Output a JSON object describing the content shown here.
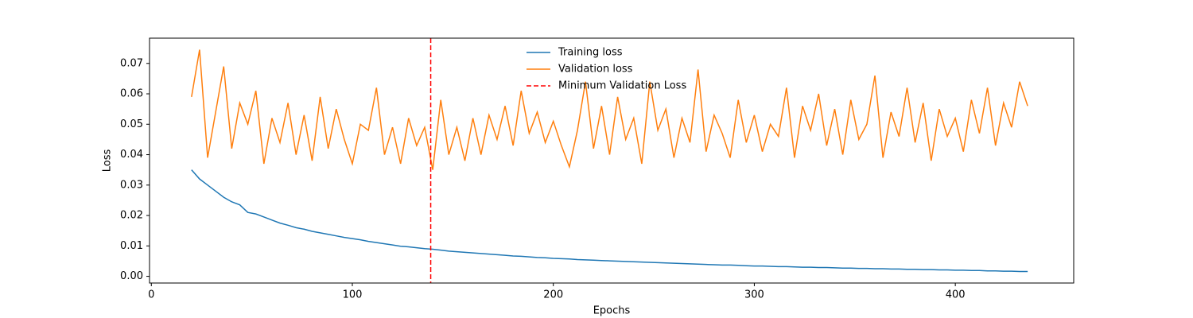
{
  "chart_data": {
    "type": "line",
    "xlabel": "Epochs",
    "ylabel": "Loss",
    "x": [
      20,
      24,
      28,
      32,
      36,
      40,
      44,
      48,
      52,
      56,
      60,
      64,
      68,
      72,
      76,
      80,
      84,
      88,
      92,
      96,
      100,
      104,
      108,
      112,
      116,
      120,
      124,
      128,
      132,
      136,
      140,
      144,
      148,
      152,
      156,
      160,
      164,
      168,
      172,
      176,
      180,
      184,
      188,
      192,
      196,
      200,
      204,
      208,
      212,
      216,
      220,
      224,
      228,
      232,
      236,
      240,
      244,
      248,
      252,
      256,
      260,
      264,
      268,
      272,
      276,
      280,
      284,
      288,
      292,
      296,
      300,
      304,
      308,
      312,
      316,
      320,
      324,
      328,
      332,
      336,
      340,
      344,
      348,
      352,
      356,
      360,
      364,
      368,
      372,
      376,
      380,
      384,
      388,
      392,
      396,
      400,
      404,
      408,
      412,
      416,
      420,
      424,
      428,
      432,
      436
    ],
    "series": [
      {
        "name": "Training loss",
        "color": "#1f77b4",
        "values": [
          0.035,
          0.032,
          0.03,
          0.028,
          0.026,
          0.0245,
          0.0235,
          0.021,
          0.0205,
          0.0195,
          0.0185,
          0.0175,
          0.0168,
          0.016,
          0.0155,
          0.0148,
          0.0143,
          0.0138,
          0.0133,
          0.0128,
          0.0124,
          0.012,
          0.0115,
          0.0111,
          0.0107,
          0.0103,
          0.0099,
          0.0097,
          0.0094,
          0.0091,
          0.0089,
          0.0086,
          0.0083,
          0.0081,
          0.0079,
          0.0077,
          0.0075,
          0.0073,
          0.0071,
          0.0069,
          0.0067,
          0.0066,
          0.0064,
          0.0062,
          0.0061,
          0.0059,
          0.0058,
          0.0057,
          0.0055,
          0.0054,
          0.0053,
          0.0052,
          0.0051,
          0.005,
          0.0049,
          0.0048,
          0.0047,
          0.0046,
          0.0045,
          0.0044,
          0.0043,
          0.0042,
          0.0041,
          0.004,
          0.0039,
          0.0038,
          0.0037,
          0.0037,
          0.0036,
          0.0035,
          0.0034,
          0.0034,
          0.0033,
          0.0032,
          0.0032,
          0.0031,
          0.003,
          0.003,
          0.0029,
          0.0029,
          0.0028,
          0.0027,
          0.0027,
          0.0026,
          0.0026,
          0.0025,
          0.0025,
          0.0024,
          0.0024,
          0.0023,
          0.0023,
          0.0022,
          0.0022,
          0.0021,
          0.0021,
          0.002,
          0.002,
          0.0019,
          0.0019,
          0.0018,
          0.0018,
          0.0017,
          0.0017,
          0.0016,
          0.0016
        ]
      },
      {
        "name": "Validation loss",
        "color": "#ff7f0e",
        "values": [
          0.059,
          0.0745,
          0.039,
          0.054,
          0.069,
          0.042,
          0.057,
          0.05,
          0.061,
          0.037,
          0.052,
          0.044,
          0.057,
          0.04,
          0.053,
          0.038,
          0.059,
          0.042,
          0.055,
          0.045,
          0.037,
          0.05,
          0.048,
          0.062,
          0.04,
          0.049,
          0.037,
          0.052,
          0.043,
          0.049,
          0.035,
          0.058,
          0.04,
          0.049,
          0.038,
          0.052,
          0.04,
          0.053,
          0.045,
          0.056,
          0.043,
          0.061,
          0.047,
          0.054,
          0.044,
          0.051,
          0.043,
          0.036,
          0.048,
          0.064,
          0.042,
          0.056,
          0.04,
          0.059,
          0.045,
          0.052,
          0.037,
          0.064,
          0.048,
          0.055,
          0.039,
          0.052,
          0.044,
          0.068,
          0.041,
          0.053,
          0.047,
          0.039,
          0.058,
          0.044,
          0.053,
          0.041,
          0.05,
          0.046,
          0.062,
          0.039,
          0.056,
          0.048,
          0.06,
          0.043,
          0.055,
          0.04,
          0.058,
          0.045,
          0.05,
          0.066,
          0.039,
          0.054,
          0.046,
          0.062,
          0.044,
          0.057,
          0.038,
          0.055,
          0.046,
          0.052,
          0.041,
          0.058,
          0.047,
          0.062,
          0.043,
          0.057,
          0.049,
          0.064,
          0.056
        ]
      }
    ],
    "vline": {
      "name": "Minimum Validation Loss",
      "x": 139,
      "color": "#ff0000"
    },
    "xlim": [
      -0.9,
      458.9
    ],
    "ylim": [
      -0.0022,
      0.0783
    ],
    "xticks": [
      0,
      100,
      200,
      300,
      400
    ],
    "yticks": [
      {
        "value": 0,
        "label": "0.00"
      },
      {
        "value": 0.01,
        "label": "0.01"
      },
      {
        "value": 0.02,
        "label": "0.02"
      },
      {
        "value": 0.03,
        "label": "0.03"
      },
      {
        "value": 0.04,
        "label": "0.04"
      },
      {
        "value": 0.05,
        "label": "0.05"
      },
      {
        "value": 0.06,
        "label": "0.06"
      },
      {
        "value": 0.07,
        "label": "0.07"
      }
    ],
    "legend": "upper center",
    "grid": false
  }
}
